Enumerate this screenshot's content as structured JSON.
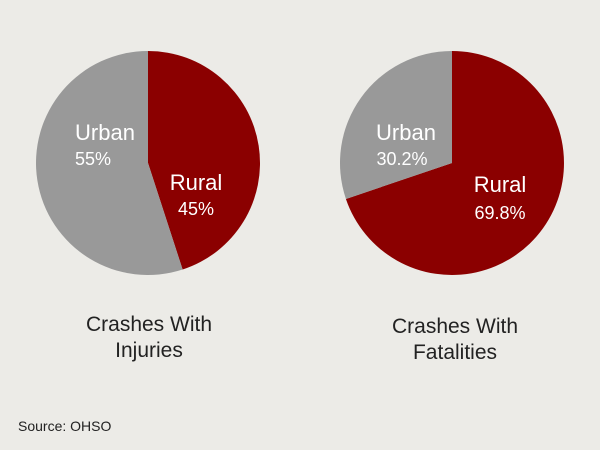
{
  "colors": {
    "background": "#ecebe7",
    "rural": "#8b0000",
    "urban": "#999999"
  },
  "chart_data": [
    {
      "type": "pie",
      "title_lines": [
        "Crashes With",
        "Injuries"
      ],
      "slices": [
        {
          "name": "Rural",
          "value": 45,
          "label": "45%",
          "color": "#8b0000"
        },
        {
          "name": "Urban",
          "value": 55,
          "label": "55%",
          "color": "#999999"
        }
      ]
    },
    {
      "type": "pie",
      "title_lines": [
        "Crashes With",
        "Fatalities"
      ],
      "slices": [
        {
          "name": "Rural",
          "value": 69.8,
          "label": "69.8%",
          "color": "#8b0000"
        },
        {
          "name": "Urban",
          "value": 30.2,
          "label": "30.2%",
          "color": "#999999"
        }
      ]
    }
  ],
  "source": "Source: OHSO"
}
